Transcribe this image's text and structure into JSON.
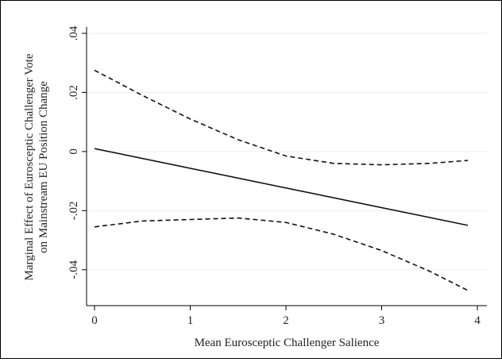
{
  "chart_data": {
    "type": "line",
    "title": "",
    "xlabel": "Mean Eurosceptic Challenger Salience",
    "ylabel_line1": "Marginal Effect of Eurosceptic Challenger Vote",
    "ylabel_line2": "on Mainstream EU Position Change",
    "xlim": [
      0,
      4
    ],
    "ylim": [
      -0.05,
      0.04
    ],
    "xticks": [
      0,
      1,
      2,
      3,
      4
    ],
    "xtick_labels": [
      "0",
      "1",
      "2",
      "3",
      "4"
    ],
    "yticks": [
      -0.04,
      -0.02,
      0,
      0.02,
      0.04
    ],
    "ytick_labels": [
      "-.04",
      "-.02",
      "0",
      ".02",
      ".04"
    ],
    "grid": true,
    "legend": "none",
    "series": [
      {
        "role": "estimate",
        "style": "solid",
        "x": [
          0,
          3.9
        ],
        "y": [
          0.001,
          -0.025
        ]
      },
      {
        "role": "upper-ci",
        "style": "dashed",
        "x": [
          0,
          0.5,
          1.0,
          1.5,
          2.0,
          2.5,
          3.0,
          3.5,
          3.9
        ],
        "y": [
          0.0275,
          0.019,
          0.011,
          0.004,
          -0.0015,
          -0.004,
          -0.0045,
          -0.004,
          -0.003
        ]
      },
      {
        "role": "lower-ci",
        "style": "dashed",
        "x": [
          0,
          0.5,
          1.0,
          1.5,
          2.0,
          2.5,
          3.0,
          3.5,
          3.9
        ],
        "y": [
          -0.0255,
          -0.0235,
          -0.023,
          -0.0225,
          -0.024,
          -0.028,
          -0.0335,
          -0.0405,
          -0.047
        ]
      }
    ]
  }
}
